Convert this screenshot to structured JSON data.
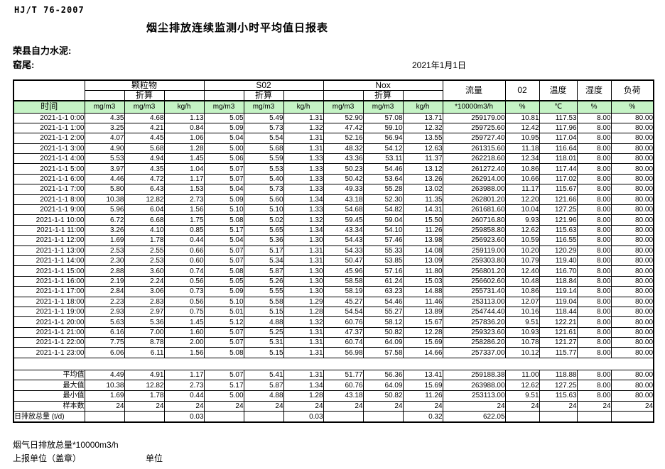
{
  "page": {
    "standard_ref": "HJ/T 76-2007",
    "title": "烟尘排放连续监测小时平均值日报表",
    "company": "荣县自力水泥:",
    "station": "窑尾:",
    "date": "2021年1月1日",
    "footer_note": "烟气日排放总量*10000m3/h",
    "report_unit_label": "上报单位（盖章）",
    "unit_label": "单位"
  },
  "table": {
    "time_header": "时间",
    "groups": {
      "particulate": "颗粒物",
      "so2": "S02",
      "nox": "Nox",
      "flow": "流量",
      "o2": "02",
      "temperature": "温度",
      "humidity": "湿度",
      "load": "负荷"
    },
    "converted_label": "折算",
    "units": [
      "mg/m3",
      "mg/m3",
      "kg/h",
      "mg/m3",
      "mg/m3",
      "kg/h",
      "mg/m3",
      "mg/m3",
      "kg/h",
      "*10000m3/h",
      "%",
      "℃",
      "%",
      "%"
    ],
    "rows": [
      {
        "time": "2021-1-1 0:00",
        "values": [
          "4.35",
          "4.68",
          "1.13",
          "5.05",
          "5.49",
          "1.31",
          "52.90",
          "57.08",
          "13.71",
          "259179.00",
          "10.81",
          "117.53",
          "8.00",
          "80.00"
        ]
      },
      {
        "time": "2021-1-1 1:00",
        "values": [
          "3.25",
          "4.21",
          "0.84",
          "5.09",
          "5.73",
          "1.32",
          "47.42",
          "59.10",
          "12.32",
          "259725.60",
          "12.42",
          "117.96",
          "8.00",
          "80.00"
        ]
      },
      {
        "time": "2021-1-1 2:00",
        "values": [
          "4.07",
          "4.45",
          "1.06",
          "5.04",
          "5.54",
          "1.31",
          "52.16",
          "56.94",
          "13.55",
          "259727.40",
          "10.95",
          "117.04",
          "8.00",
          "80.00"
        ]
      },
      {
        "time": "2021-1-1 3:00",
        "values": [
          "4.90",
          "5.68",
          "1.28",
          "5.00",
          "5.68",
          "1.31",
          "48.32",
          "54.12",
          "12.63",
          "261315.60",
          "11.18",
          "116.64",
          "8.00",
          "80.00"
        ]
      },
      {
        "time": "2021-1-1 4:00",
        "values": [
          "5.53",
          "4.94",
          "1.45",
          "5.06",
          "5.59",
          "1.33",
          "43.36",
          "53.11",
          "11.37",
          "262218.60",
          "12.34",
          "118.01",
          "8.00",
          "80.00"
        ]
      },
      {
        "time": "2021-1-1 5:00",
        "values": [
          "3.97",
          "4.35",
          "1.04",
          "5.07",
          "5.53",
          "1.33",
          "50.23",
          "54.46",
          "13.12",
          "261272.40",
          "10.86",
          "117.44",
          "8.00",
          "80.00"
        ]
      },
      {
        "time": "2021-1-1 6:00",
        "values": [
          "4.46",
          "4.72",
          "1.17",
          "5.07",
          "5.40",
          "1.33",
          "50.42",
          "53.64",
          "13.26",
          "262914.00",
          "10.66",
          "117.02",
          "8.00",
          "80.00"
        ]
      },
      {
        "time": "2021-1-1 7:00",
        "values": [
          "5.80",
          "6.43",
          "1.53",
          "5.04",
          "5.73",
          "1.33",
          "49.33",
          "55.28",
          "13.02",
          "263988.00",
          "11.17",
          "115.67",
          "8.00",
          "80.00"
        ]
      },
      {
        "time": "2021-1-1 8:00",
        "values": [
          "10.38",
          "12.82",
          "2.73",
          "5.09",
          "5.60",
          "1.34",
          "43.18",
          "52.30",
          "11.35",
          "262801.20",
          "12.20",
          "121.66",
          "8.00",
          "80.00"
        ]
      },
      {
        "time": "2021-1-1 9:00",
        "values": [
          "5.96",
          "6.04",
          "1.56",
          "5.10",
          "5.10",
          "1.33",
          "54.68",
          "54.82",
          "14.31",
          "261681.60",
          "10.04",
          "127.25",
          "8.00",
          "80.00"
        ]
      },
      {
        "time": "2021-1-1 10:00",
        "values": [
          "6.72",
          "6.68",
          "1.75",
          "5.08",
          "5.02",
          "1.32",
          "59.45",
          "59.04",
          "15.50",
          "260716.80",
          "9.93",
          "121.96",
          "8.00",
          "80.00"
        ]
      },
      {
        "time": "2021-1-1 11:00",
        "values": [
          "3.26",
          "4.10",
          "0.85",
          "5.17",
          "5.65",
          "1.34",
          "43.34",
          "54.10",
          "11.26",
          "259858.80",
          "12.62",
          "115.63",
          "8.00",
          "80.00"
        ]
      },
      {
        "time": "2021-1-1 12:00",
        "values": [
          "1.69",
          "1.78",
          "0.44",
          "5.04",
          "5.36",
          "1.30",
          "54.43",
          "57.46",
          "13.98",
          "256923.60",
          "10.59",
          "116.55",
          "8.00",
          "80.00"
        ]
      },
      {
        "time": "2021-1-1 13:00",
        "values": [
          "2.53",
          "2.55",
          "0.66",
          "5.07",
          "5.17",
          "1.31",
          "54.33",
          "55.33",
          "14.08",
          "259119.00",
          "10.20",
          "120.29",
          "8.00",
          "80.00"
        ]
      },
      {
        "time": "2021-1-1 14:00",
        "values": [
          "2.30",
          "2.53",
          "0.60",
          "5.07",
          "5.34",
          "1.31",
          "50.47",
          "53.85",
          "13.09",
          "259303.80",
          "10.79",
          "119.40",
          "8.00",
          "80.00"
        ]
      },
      {
        "time": "2021-1-1 15:00",
        "values": [
          "2.88",
          "3.60",
          "0.74",
          "5.08",
          "5.87",
          "1.30",
          "45.96",
          "57.16",
          "11.80",
          "256801.20",
          "12.40",
          "116.70",
          "8.00",
          "80.00"
        ]
      },
      {
        "time": "2021-1-1 16:00",
        "values": [
          "2.19",
          "2.24",
          "0.56",
          "5.05",
          "5.26",
          "1.30",
          "58.58",
          "61.24",
          "15.03",
          "256602.60",
          "10.48",
          "118.84",
          "8.00",
          "80.00"
        ]
      },
      {
        "time": "2021-1-1 17:00",
        "values": [
          "2.84",
          "3.06",
          "0.73",
          "5.09",
          "5.55",
          "1.30",
          "58.19",
          "63.23",
          "14.88",
          "255731.40",
          "10.86",
          "119.14",
          "8.00",
          "80.00"
        ]
      },
      {
        "time": "2021-1-1 18:00",
        "values": [
          "2.23",
          "2.83",
          "0.56",
          "5.10",
          "5.58",
          "1.29",
          "45.27",
          "54.46",
          "11.46",
          "253113.00",
          "12.07",
          "119.04",
          "8.00",
          "80.00"
        ]
      },
      {
        "time": "2021-1-1 19:00",
        "values": [
          "2.93",
          "2.97",
          "0.75",
          "5.01",
          "5.15",
          "1.28",
          "54.54",
          "55.27",
          "13.89",
          "254744.40",
          "10.16",
          "118.44",
          "8.00",
          "80.00"
        ]
      },
      {
        "time": "2021-1-1 20:00",
        "values": [
          "5.63",
          "5.36",
          "1.45",
          "5.12",
          "4.88",
          "1.32",
          "60.76",
          "58.12",
          "15.67",
          "257836.20",
          "9.51",
          "122.21",
          "8.00",
          "80.00"
        ]
      },
      {
        "time": "2021-1-1 21:00",
        "values": [
          "6.16",
          "7.00",
          "1.60",
          "5.07",
          "5.25",
          "1.31",
          "47.37",
          "50.82",
          "12.28",
          "259323.60",
          "10.93",
          "121.61",
          "8.00",
          "80.00"
        ]
      },
      {
        "time": "2021-1-1 22:00",
        "values": [
          "7.75",
          "8.78",
          "2.00",
          "5.07",
          "5.31",
          "1.31",
          "60.74",
          "64.09",
          "15.69",
          "258286.20",
          "10.78",
          "121.27",
          "8.00",
          "80.00"
        ]
      },
      {
        "time": "2021-1-1 23:00",
        "values": [
          "6.06",
          "6.11",
          "1.56",
          "5.08",
          "5.15",
          "1.31",
          "56.98",
          "57.58",
          "14.66",
          "257337.00",
          "10.12",
          "115.77",
          "8.00",
          "80.00"
        ]
      }
    ],
    "summary": [
      {
        "label": "平均值",
        "values": [
          "4.49",
          "4.91",
          "1.17",
          "5.07",
          "5.41",
          "1.31",
          "51.77",
          "56.36",
          "13.41",
          "259188.38",
          "11.00",
          "118.88",
          "8.00",
          "80.00"
        ]
      },
      {
        "label": "最大值",
        "values": [
          "10.38",
          "12.82",
          "2.73",
          "5.17",
          "5.87",
          "1.34",
          "60.76",
          "64.09",
          "15.69",
          "263988.00",
          "12.62",
          "127.25",
          "8.00",
          "80.00"
        ]
      },
      {
        "label": "最小值",
        "values": [
          "1.69",
          "1.78",
          "0.44",
          "5.00",
          "4.88",
          "1.28",
          "43.18",
          "50.82",
          "11.26",
          "253113.00",
          "9.51",
          "115.63",
          "8.00",
          "80.00"
        ]
      },
      {
        "label": "样本数",
        "values": [
          "24",
          "24",
          "24",
          "24",
          "24",
          "24",
          "24",
          "24",
          "24",
          "24",
          "24",
          "24",
          "24",
          "24"
        ]
      }
    ],
    "total_row": {
      "label": "日排放总量 (t/d)",
      "values": [
        "",
        "",
        "0.03",
        "",
        "",
        "0.03",
        "",
        "",
        "0.32",
        "622.05",
        "",
        "",
        "",
        ""
      ]
    }
  }
}
